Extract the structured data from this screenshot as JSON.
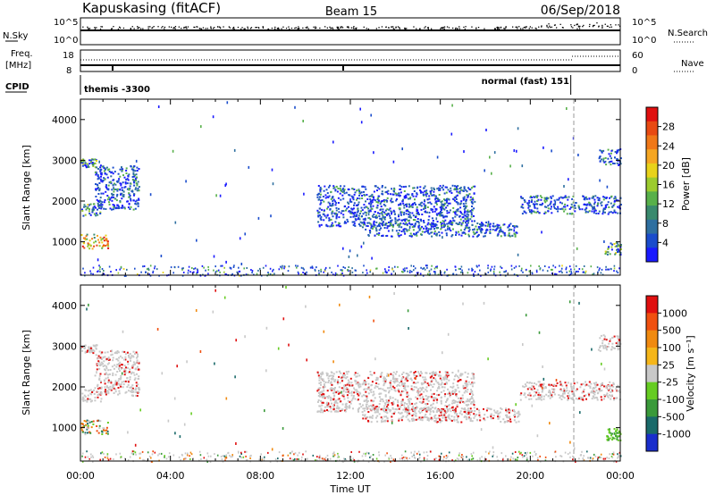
{
  "header": {
    "station": "Kapuskasing (fitACF)",
    "beam": "Beam 15",
    "date": "06/Sep/2018"
  },
  "strip": {
    "nsky_label": "N.Sky",
    "freq_label_top": "Freq.",
    "freq_label_unit": "[MHz]",
    "cpid_label": "CPID",
    "nsearch_label": "N.Search",
    "nave_label": "Nave",
    "left_noise_ticks": [
      "10^5",
      "10^0"
    ],
    "right_noise_ticks": [
      "10^5",
      "10^0"
    ],
    "left_freq_ticks": [
      "18",
      "8"
    ],
    "right_nave_ticks": [
      "60",
      "0"
    ],
    "cpid_first": "themis -3300",
    "cpid_second": "normal (fast) 151",
    "cpid_change_hour": 21.8
  },
  "chart_data": [
    {
      "type": "heatmap",
      "name": "power",
      "xlabel": "",
      "ylabel": "Slant Range [km]",
      "xlim_hours": [
        0,
        24
      ],
      "ylim_km": [
        180,
        4500
      ],
      "y_ticks": [
        "1000",
        "2000",
        "3000",
        "4000"
      ],
      "colorbar": {
        "label": "Power [dB]",
        "ticks": [
          "4",
          "8",
          "12",
          "16",
          "20",
          "24",
          "28"
        ],
        "colors": [
          "#1a1aff",
          "#1a4ccc",
          "#2e6fa0",
          "#3a8a6e",
          "#58b04a",
          "#9ccb2e",
          "#e8d21a",
          "#f5a623",
          "#f07818",
          "#e84a12",
          "#e01010"
        ]
      },
      "echo_regions": [
        {
          "hours": [
            0.0,
            0.7
          ],
          "range_km": [
            2850,
            3050
          ],
          "level": "medium"
        },
        {
          "hours": [
            0.0,
            0.9
          ],
          "range_km": [
            1650,
            1950
          ],
          "level": "medium"
        },
        {
          "hours": [
            0.0,
            1.2
          ],
          "range_km": [
            850,
            1200
          ],
          "level": "strong"
        },
        {
          "hours": [
            0.6,
            2.6
          ],
          "range_km": [
            1800,
            2900
          ],
          "level": "weak"
        },
        {
          "hours": [
            10.5,
            17.5
          ],
          "range_km": [
            1400,
            2400
          ],
          "level": "weak"
        },
        {
          "hours": [
            12.5,
            19.5
          ],
          "range_km": [
            1150,
            1500
          ],
          "level": "weak"
        },
        {
          "hours": [
            19.5,
            24.0
          ],
          "range_km": [
            1700,
            2150
          ],
          "level": "weak"
        },
        {
          "hours": [
            23.0,
            24.0
          ],
          "range_km": [
            2900,
            3300
          ],
          "level": "weak"
        },
        {
          "hours": [
            23.3,
            24.0
          ],
          "range_km": [
            700,
            1000
          ],
          "level": "medium"
        }
      ]
    },
    {
      "type": "heatmap",
      "name": "velocity",
      "xlabel": "Time UT",
      "ylabel": "Slant Range [km]",
      "xlim_hours": [
        0,
        24
      ],
      "ylim_km": [
        180,
        4500
      ],
      "x_ticks": [
        "00:00",
        "04:00",
        "08:00",
        "12:00",
        "16:00",
        "20:00",
        "00:00"
      ],
      "y_ticks": [
        "1000",
        "2000",
        "3000",
        "4000"
      ],
      "colorbar": {
        "label": "Velocity [m s⁻¹]",
        "ticks": [
          "1000",
          "500",
          "100",
          "25",
          "-25",
          "-100",
          "-500",
          "-1000"
        ],
        "colors": [
          "#1a2ecc",
          "#1a6a6a",
          "#3a9a3a",
          "#66cc22",
          "#c8c8c8",
          "#f5b61a",
          "#f08a10",
          "#f05010",
          "#e01010"
        ]
      },
      "echo_regions": [
        {
          "hours": [
            0.0,
            0.7
          ],
          "range_km": [
            2850,
            3050
          ],
          "level": "ground"
        },
        {
          "hours": [
            0.0,
            0.9
          ],
          "range_km": [
            1650,
            1950
          ],
          "level": "ground"
        },
        {
          "hours": [
            0.0,
            1.2
          ],
          "range_km": [
            850,
            1200
          ],
          "level": "mixed"
        },
        {
          "hours": [
            0.6,
            2.6
          ],
          "range_km": [
            1800,
            2900
          ],
          "level": "ground"
        },
        {
          "hours": [
            10.5,
            17.5
          ],
          "range_km": [
            1400,
            2400
          ],
          "level": "ground"
        },
        {
          "hours": [
            12.5,
            19.5
          ],
          "range_km": [
            1150,
            1500
          ],
          "level": "ground"
        },
        {
          "hours": [
            19.5,
            24.0
          ],
          "range_km": [
            1700,
            2150
          ],
          "level": "ground"
        },
        {
          "hours": [
            23.0,
            24.0
          ],
          "range_km": [
            2900,
            3300
          ],
          "level": "ground"
        },
        {
          "hours": [
            23.3,
            24.0
          ],
          "range_km": [
            700,
            1000
          ],
          "level": "positive"
        }
      ]
    }
  ]
}
